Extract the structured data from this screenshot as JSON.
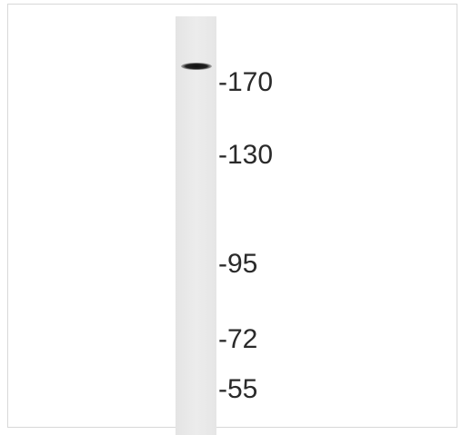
{
  "markers": [
    "-170",
    "-130",
    "-95",
    "-72",
    "-55"
  ]
}
